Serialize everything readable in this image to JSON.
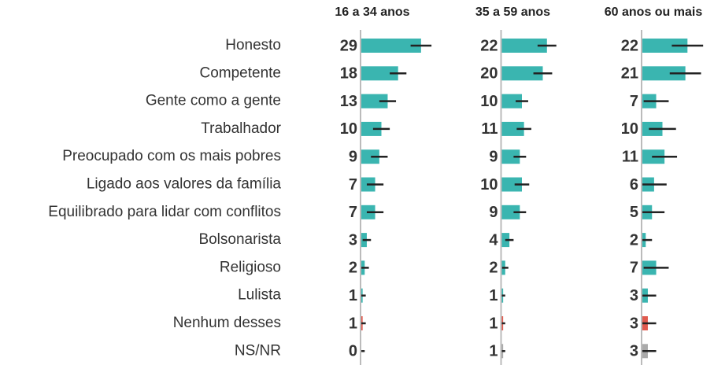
{
  "chart_data": {
    "type": "bar",
    "orientation": "horizontal",
    "categories": [
      "Honesto",
      "Competente",
      "Gente como a gente",
      "Trabalhador",
      "Preocupado com os mais pobres",
      "Ligado aos valores da família",
      "Equilibrado para lidar com conflitos",
      "Bolsonarista",
      "Religioso",
      "Lulista",
      "Nenhum desses",
      "NS/NR"
    ],
    "colors": [
      "#3ab5b0",
      "#3ab5b0",
      "#3ab5b0",
      "#3ab5b0",
      "#3ab5b0",
      "#3ab5b0",
      "#3ab5b0",
      "#3ab5b0",
      "#3ab5b0",
      "#3ab5b0",
      "#e05a4e",
      "#aaaaaa"
    ],
    "xlim": [
      0,
      40
    ],
    "series": [
      {
        "name": "16 a 34 anos",
        "values": [
          29,
          18,
          13,
          10,
          9,
          7,
          7,
          3,
          2,
          1,
          1,
          0
        ],
        "errors": [
          5,
          4,
          4,
          4,
          4,
          4,
          4,
          2,
          2,
          1.5,
          1.5,
          2
        ]
      },
      {
        "name": "35 a 59 anos",
        "values": [
          22,
          20,
          10,
          11,
          9,
          10,
          9,
          4,
          2,
          1,
          1,
          1
        ],
        "errors": [
          4.5,
          4.5,
          3,
          3.5,
          3,
          3.5,
          3,
          2,
          1.5,
          1,
          1,
          1
        ]
      },
      {
        "name": "60 anos ou mais",
        "values": [
          22,
          21,
          7,
          10,
          11,
          6,
          5,
          2,
          7,
          3,
          3,
          3
        ],
        "errors": [
          7.5,
          7.5,
          6,
          6.5,
          6,
          6,
          6,
          3,
          6,
          4,
          4,
          4
        ]
      }
    ]
  }
}
